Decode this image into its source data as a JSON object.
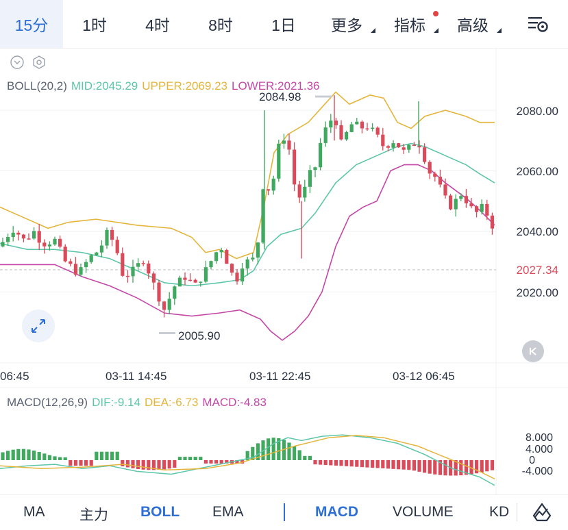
{
  "timeframes": [
    {
      "label": "15分",
      "active": true
    },
    {
      "label": "1时"
    },
    {
      "label": "4时"
    },
    {
      "label": "8时"
    },
    {
      "label": "1日"
    },
    {
      "label": "更多",
      "caret": true
    },
    {
      "label": "指标",
      "caret": true,
      "dot": true
    },
    {
      "label": "高级",
      "caret": true
    }
  ],
  "boll": {
    "name": "BOLL(20,2)",
    "mid": "MID:2045.29",
    "upper": "UPPER:2069.23",
    "lower": "LOWER:2021.36"
  },
  "price_axis": [
    "2080.00",
    "2060.00",
    "2040.00",
    "2020.00"
  ],
  "last_price": "2027.34",
  "high_marker": "2084.98",
  "low_marker": "2005.90",
  "time_axis": [
    "06:45",
    "03-11 14:45",
    "03-11 22:45",
    "03-12 06:45"
  ],
  "macd": {
    "name": "MACD(12,26,9)",
    "dif": "DIF:-9.14",
    "dea": "DEA:-6.73",
    "macd": "MACD:-4.83",
    "axis": [
      "8.000",
      "4.000",
      "0",
      "-4.000"
    ]
  },
  "indicators_main": [
    "MA",
    "主力",
    "BOLL",
    "EMA"
  ],
  "indicators_sub": [
    "MACD",
    "VOLUME",
    "KD"
  ],
  "colors": {
    "up": "#41a85f",
    "down": "#d94b5a",
    "mid": "#5cc6a8",
    "upper": "#e5b53b",
    "lower": "#c447a6",
    "accent": "#2e6fd6"
  },
  "icons": {
    "settings": "settings-sliders-icon",
    "expand": "expand-arrows-icon",
    "back": "skip-back-icon",
    "draw": "draw-line-icon"
  }
}
